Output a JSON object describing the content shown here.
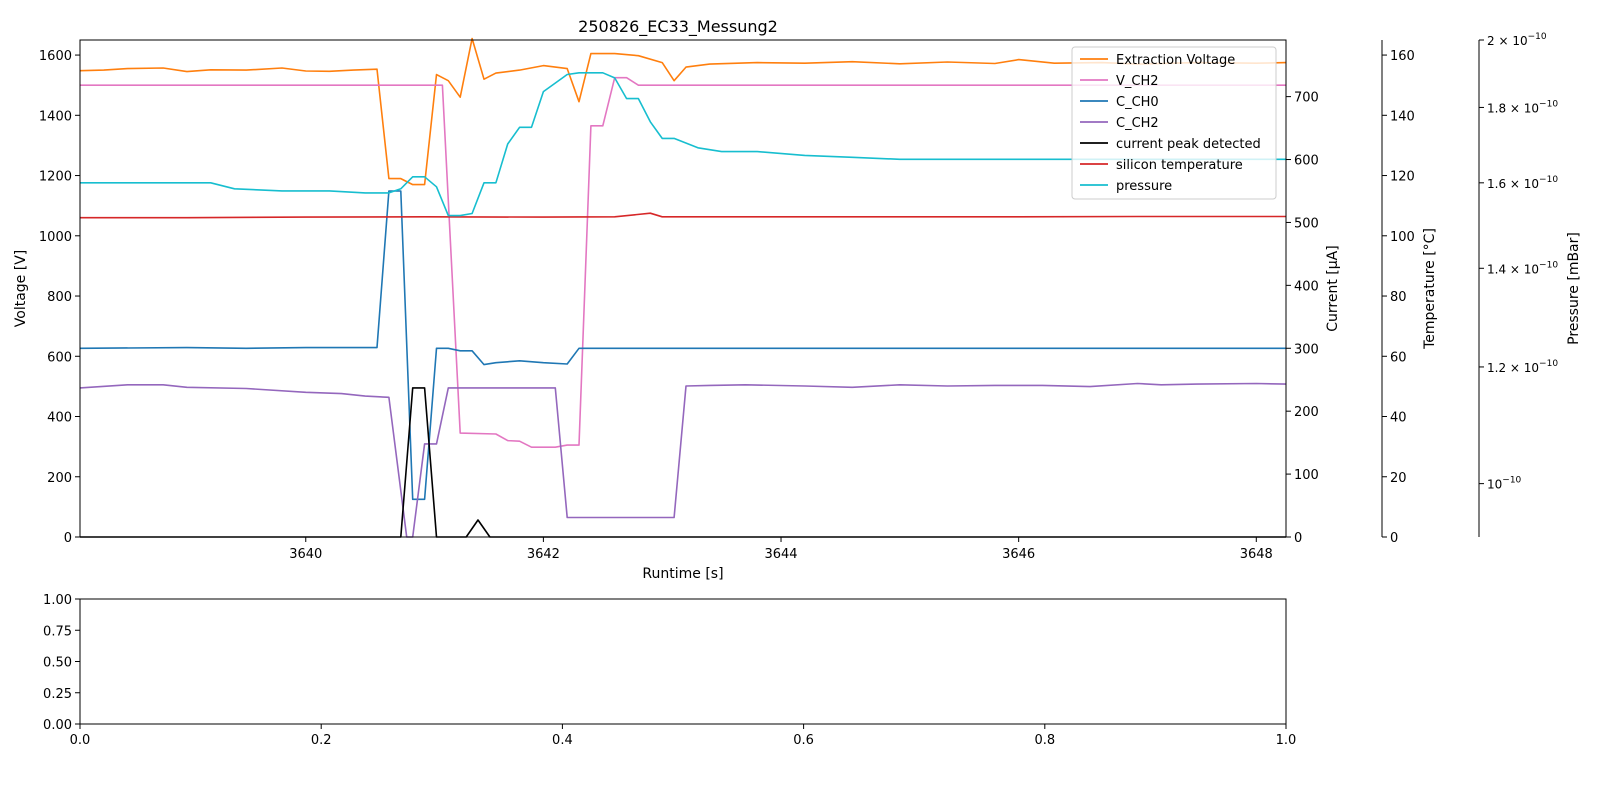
{
  "chart_data": [
    {
      "type": "line",
      "title": "250826_EC33_Messung2",
      "xlabel": "Runtime [s]",
      "xlim": [
        3638.1,
        3648.25
      ],
      "x_ticks": [
        "3640",
        "3642",
        "3644",
        "3646",
        "3648"
      ],
      "axes": [
        {
          "id": "voltage",
          "label": "Voltage [V]",
          "side": "left",
          "range": [
            0,
            1650
          ],
          "ticks": [
            "0",
            "200",
            "400",
            "600",
            "800",
            "1000",
            "1200",
            "1400",
            "1600"
          ]
        },
        {
          "id": "current",
          "label": "Current [µA]",
          "side": "right",
          "range": [
            0,
            790
          ],
          "ticks": [
            "0",
            "100",
            "200",
            "300",
            "400",
            "500",
            "600",
            "700"
          ]
        },
        {
          "id": "temperature",
          "label": "Temperature [°C]",
          "side": "right",
          "range": [
            0,
            165
          ],
          "ticks": [
            "0",
            "20",
            "40",
            "60",
            "80",
            "100",
            "120",
            "140",
            "160"
          ]
        },
        {
          "id": "pressure",
          "label": "Pressure [mBar]",
          "side": "right",
          "scale": "log",
          "range": [
            9.2e-11,
            2e-10
          ],
          "ticks": [
            {
              "value": 1e-10,
              "mant": "10",
              "exp": "−10"
            },
            {
              "value": 1.2e-10,
              "mant": "1.2 × 10",
              "exp": "−10"
            },
            {
              "value": 1.4e-10,
              "mant": "1.4 × 10",
              "exp": "−10"
            },
            {
              "value": 1.6e-10,
              "mant": "1.6 × 10",
              "exp": "−10"
            },
            {
              "value": 1.8e-10,
              "mant": "1.8 × 10",
              "exp": "−10"
            },
            {
              "value": 2e-10,
              "mant": "2 × 10",
              "exp": "−10"
            }
          ]
        }
      ],
      "legend_position": "top-right",
      "series": [
        {
          "name": "Extraction Voltage",
          "axis": "voltage",
          "color": "#ff7f0e",
          "points": [
            [
              3638.1,
              1548
            ],
            [
              3638.3,
              1550
            ],
            [
              3638.5,
              1555
            ],
            [
              3638.8,
              1557
            ],
            [
              3639.0,
              1545
            ],
            [
              3639.2,
              1551
            ],
            [
              3639.5,
              1550
            ],
            [
              3639.8,
              1557
            ],
            [
              3640.0,
              1547
            ],
            [
              3640.2,
              1546
            ],
            [
              3640.4,
              1550
            ],
            [
              3640.6,
              1553
            ],
            [
              3640.7,
              1190
            ],
            [
              3640.8,
              1190
            ],
            [
              3640.9,
              1170
            ],
            [
              3641.0,
              1170
            ],
            [
              3641.1,
              1535
            ],
            [
              3641.2,
              1515
            ],
            [
              3641.3,
              1460
            ],
            [
              3641.4,
              1655
            ],
            [
              3641.5,
              1520
            ],
            [
              3641.6,
              1540
            ],
            [
              3641.8,
              1550
            ],
            [
              3642.0,
              1565
            ],
            [
              3642.2,
              1555
            ],
            [
              3642.3,
              1445
            ],
            [
              3642.4,
              1605
            ],
            [
              3642.6,
              1605
            ],
            [
              3642.8,
              1598
            ],
            [
              3643.0,
              1575
            ],
            [
              3643.1,
              1515
            ],
            [
              3643.2,
              1560
            ],
            [
              3643.4,
              1570
            ],
            [
              3643.8,
              1575
            ],
            [
              3644.2,
              1573
            ],
            [
              3644.6,
              1578
            ],
            [
              3645.0,
              1571
            ],
            [
              3645.4,
              1577
            ],
            [
              3645.8,
              1572
            ],
            [
              3646.0,
              1585
            ],
            [
              3646.3,
              1573
            ],
            [
              3646.7,
              1575
            ],
            [
              3647.0,
              1570
            ],
            [
              3647.5,
              1575
            ],
            [
              3648.0,
              1573
            ],
            [
              3648.25,
              1575
            ]
          ]
        },
        {
          "name": "V_CH2",
          "axis": "voltage",
          "color": "#e377c2",
          "points": [
            [
              3638.1,
              1500
            ],
            [
              3641.15,
              1500
            ],
            [
              3641.3,
              345
            ],
            [
              3641.6,
              342
            ],
            [
              3641.7,
              320
            ],
            [
              3641.8,
              318
            ],
            [
              3641.9,
              298
            ],
            [
              3642.1,
              298
            ],
            [
              3642.2,
              305
            ],
            [
              3642.3,
              305
            ],
            [
              3642.4,
              1365
            ],
            [
              3642.5,
              1365
            ],
            [
              3642.6,
              1525
            ],
            [
              3642.7,
              1525
            ],
            [
              3642.8,
              1500
            ],
            [
              3648.25,
              1500
            ]
          ]
        },
        {
          "name": "C_CH0",
          "axis": "current",
          "color": "#1f77b4",
          "points": [
            [
              3638.1,
              300
            ],
            [
              3639.0,
              301
            ],
            [
              3639.5,
              300
            ],
            [
              3640.0,
              301
            ],
            [
              3640.6,
              301
            ],
            [
              3640.7,
              550
            ],
            [
              3640.8,
              550
            ],
            [
              3640.9,
              60
            ],
            [
              3641.0,
              60
            ],
            [
              3641.1,
              300
            ],
            [
              3641.2,
              300
            ],
            [
              3641.3,
              296
            ],
            [
              3641.4,
              296
            ],
            [
              3641.5,
              274
            ],
            [
              3641.6,
              277
            ],
            [
              3641.8,
              280
            ],
            [
              3642.0,
              277
            ],
            [
              3642.2,
              275
            ],
            [
              3642.3,
              300
            ],
            [
              3643.0,
              300
            ],
            [
              3644.0,
              300
            ],
            [
              3645.0,
              300
            ],
            [
              3646.0,
              300
            ],
            [
              3647.0,
              300
            ],
            [
              3648.25,
              300
            ]
          ]
        },
        {
          "name": "C_CH2",
          "axis": "current",
          "color": "#9467bd",
          "points": [
            [
              3638.1,
              237
            ],
            [
              3638.5,
              242
            ],
            [
              3638.8,
              242
            ],
            [
              3639.0,
              238
            ],
            [
              3639.5,
              236
            ],
            [
              3640.0,
              230
            ],
            [
              3640.3,
              228
            ],
            [
              3640.5,
              224
            ],
            [
              3640.7,
              222
            ],
            [
              3640.85,
              0
            ],
            [
              3640.9,
              0
            ],
            [
              3641.0,
              148
            ],
            [
              3641.1,
              148
            ],
            [
              3641.2,
              237
            ],
            [
              3641.5,
              237
            ],
            [
              3641.8,
              237
            ],
            [
              3642.1,
              237
            ],
            [
              3642.2,
              31
            ],
            [
              3642.5,
              31
            ],
            [
              3642.8,
              31
            ],
            [
              3643.1,
              31
            ],
            [
              3643.2,
              240
            ],
            [
              3643.4,
              241
            ],
            [
              3643.7,
              242
            ],
            [
              3644.2,
              240
            ],
            [
              3644.6,
              238
            ],
            [
              3645.0,
              242
            ],
            [
              3645.4,
              240
            ],
            [
              3645.8,
              241
            ],
            [
              3646.2,
              241
            ],
            [
              3646.6,
              239
            ],
            [
              3647.0,
              244
            ],
            [
              3647.2,
              242
            ],
            [
              3647.5,
              243
            ],
            [
              3648.0,
              244
            ],
            [
              3648.25,
              243
            ]
          ]
        },
        {
          "name": "current peak detected",
          "axis": "current",
          "color": "#000000",
          "points": [
            [
              3638.1,
              0
            ],
            [
              3640.8,
              0
            ],
            [
              3640.9,
              237
            ],
            [
              3641.0,
              237
            ],
            [
              3641.1,
              0
            ],
            [
              3641.35,
              0
            ],
            [
              3641.45,
              27
            ],
            [
              3641.55,
              0
            ],
            [
              3648.25,
              0
            ]
          ]
        },
        {
          "name": "silicon temperature",
          "axis": "temperature",
          "color": "#d62728",
          "points": [
            [
              3638.1,
              106
            ],
            [
              3639.0,
              106
            ],
            [
              3640.0,
              106.2
            ],
            [
              3641.0,
              106.3
            ],
            [
              3642.0,
              106.2
            ],
            [
              3642.6,
              106.3
            ],
            [
              3642.9,
              107.5
            ],
            [
              3643.0,
              106.3
            ],
            [
              3644.0,
              106.3
            ],
            [
              3645.0,
              106.3
            ],
            [
              3646.0,
              106.3
            ],
            [
              3647.0,
              106.4
            ],
            [
              3648.25,
              106.4
            ]
          ]
        },
        {
          "name": "pressure",
          "axis": "pressure",
          "color": "#17becf",
          "points": [
            [
              3638.1,
              1.6e-10
            ],
            [
              3638.8,
              1.6e-10
            ],
            [
              3639.2,
              1.6e-10
            ],
            [
              3639.4,
              1.585e-10
            ],
            [
              3639.8,
              1.58e-10
            ],
            [
              3640.2,
              1.58e-10
            ],
            [
              3640.5,
              1.575e-10
            ],
            [
              3640.7,
              1.575e-10
            ],
            [
              3640.8,
              1.585e-10
            ],
            [
              3640.9,
              1.615e-10
            ],
            [
              3641.0,
              1.615e-10
            ],
            [
              3641.1,
              1.59e-10
            ],
            [
              3641.2,
              1.52e-10
            ],
            [
              3641.3,
              1.52e-10
            ],
            [
              3641.4,
              1.525e-10
            ],
            [
              3641.5,
              1.6e-10
            ],
            [
              3641.6,
              1.6e-10
            ],
            [
              3641.7,
              1.7e-10
            ],
            [
              3641.8,
              1.745e-10
            ],
            [
              3641.9,
              1.745e-10
            ],
            [
              3642.0,
              1.845e-10
            ],
            [
              3642.2,
              1.895e-10
            ],
            [
              3642.3,
              1.9e-10
            ],
            [
              3642.5,
              1.9e-10
            ],
            [
              3642.6,
              1.885e-10
            ],
            [
              3642.7,
              1.825e-10
            ],
            [
              3642.8,
              1.825e-10
            ],
            [
              3642.9,
              1.76e-10
            ],
            [
              3643.0,
              1.715e-10
            ],
            [
              3643.1,
              1.715e-10
            ],
            [
              3643.3,
              1.69e-10
            ],
            [
              3643.5,
              1.68e-10
            ],
            [
              3643.8,
              1.68e-10
            ],
            [
              3644.2,
              1.67e-10
            ],
            [
              3644.6,
              1.665e-10
            ],
            [
              3645.0,
              1.66e-10
            ],
            [
              3645.5,
              1.66e-10
            ],
            [
              3646.0,
              1.66e-10
            ],
            [
              3646.5,
              1.66e-10
            ],
            [
              3647.0,
              1.66e-10
            ],
            [
              3647.5,
              1.66e-10
            ],
            [
              3648.25,
              1.66e-10
            ]
          ]
        }
      ]
    },
    {
      "type": "line",
      "title": "",
      "xlim": [
        0.0,
        1.0
      ],
      "ylim": [
        0.0,
        1.0
      ],
      "x_ticks": [
        "0.0",
        "0.2",
        "0.4",
        "0.6",
        "0.8",
        "1.0"
      ],
      "y_ticks": [
        "0.00",
        "0.25",
        "0.50",
        "0.75",
        "1.00"
      ],
      "series": []
    }
  ]
}
